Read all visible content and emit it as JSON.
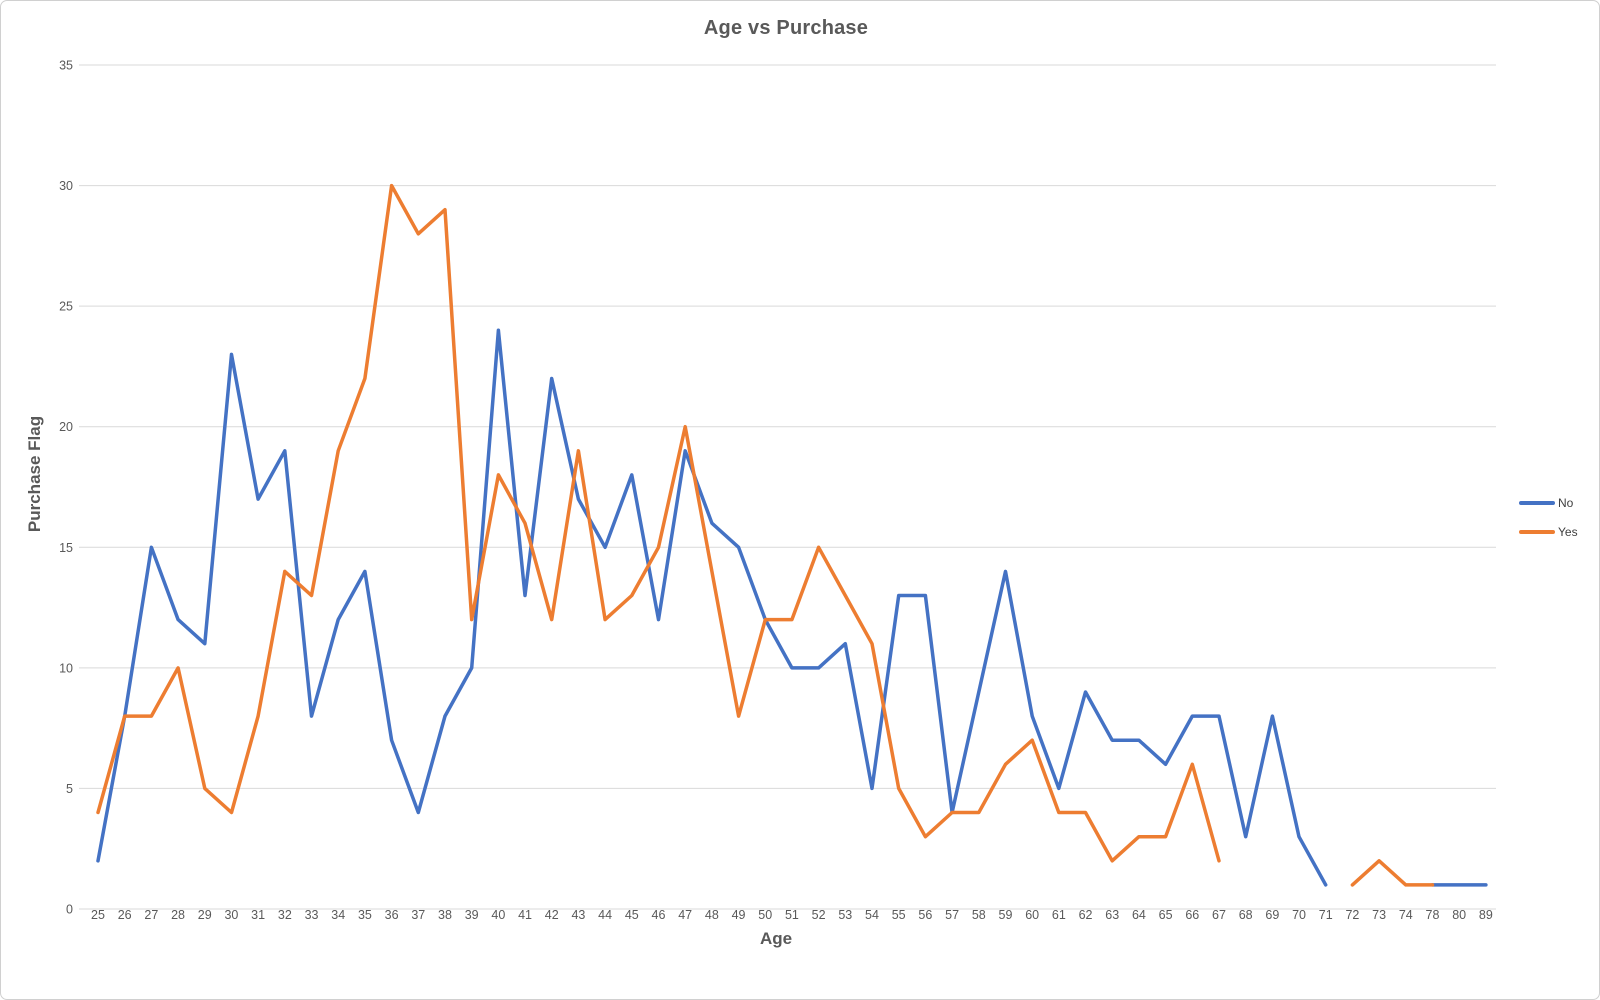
{
  "chart_data": {
    "type": "line",
    "title": "Age vs Purchase",
    "xlabel": "Age",
    "ylabel": "Purchase Flag",
    "ylim": [
      0,
      35
    ],
    "y_ticks": [
      0,
      5,
      10,
      15,
      20,
      25,
      30,
      35
    ],
    "grid": true,
    "legend_position": "right",
    "categories": [
      "25",
      "26",
      "27",
      "28",
      "29",
      "30",
      "31",
      "32",
      "33",
      "34",
      "35",
      "36",
      "37",
      "38",
      "39",
      "40",
      "41",
      "42",
      "43",
      "44",
      "45",
      "46",
      "47",
      "48",
      "49",
      "50",
      "51",
      "52",
      "53",
      "54",
      "55",
      "56",
      "57",
      "58",
      "59",
      "60",
      "61",
      "62",
      "63",
      "64",
      "65",
      "66",
      "67",
      "68",
      "69",
      "70",
      "71",
      "72",
      "73",
      "74",
      "78",
      "80",
      "89"
    ],
    "series": [
      {
        "name": "No",
        "color": "#4472C4",
        "values": [
          2,
          8,
          15,
          12,
          11,
          23,
          17,
          19,
          8,
          12,
          14,
          7,
          4,
          8,
          10,
          24,
          13,
          22,
          17,
          15,
          18,
          12,
          19,
          16,
          15,
          12,
          10,
          10,
          11,
          5,
          13,
          13,
          4,
          9,
          14,
          8,
          5,
          9,
          7,
          7,
          6,
          8,
          8,
          3,
          8,
          3,
          1,
          null,
          null,
          null,
          1,
          1,
          1
        ]
      },
      {
        "name": "Yes",
        "color": "#ED7D31",
        "values": [
          4,
          8,
          8,
          10,
          5,
          4,
          8,
          14,
          13,
          19,
          22,
          30,
          28,
          29,
          12,
          18,
          16,
          12,
          19,
          12,
          13,
          15,
          20,
          14,
          8,
          12,
          12,
          15,
          13,
          11,
          5,
          3,
          4,
          4,
          6,
          7,
          4,
          4,
          2,
          3,
          3,
          6,
          2,
          null,
          null,
          null,
          null,
          1,
          2,
          1,
          1,
          null,
          null
        ]
      }
    ],
    "gridline_color": "#D9D9D9",
    "tick_label_color": "#595959"
  }
}
